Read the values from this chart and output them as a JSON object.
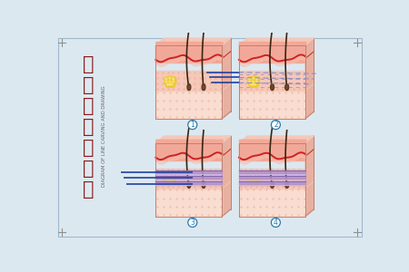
{
  "bg_color": "#dce8f0",
  "border_color": "#a0b8cc",
  "title_chinese": [
    "线",
    "雕",
    "提",
    "拉",
    "示",
    "意",
    "图"
  ],
  "title_english": "DIAGRAM OF LINE CARVING AND DRAWING",
  "title_color": "#8B1A1A",
  "title_english_color": "#666666",
  "label_color": "#2a7aaa",
  "skin_surface_color": "#f2a898",
  "skin_dermis_color": "#f5c8b8",
  "skin_deep_color": "#f8ddd0",
  "skin_red_line": "#cc2222",
  "skin_dotted_color": "#e8a8a0",
  "fat_yellow": "#f0c830",
  "hair_dark": "#3a2510",
  "hair_root": "#5a3820",
  "thread_purple": "#b090cc",
  "thread_dark": "#8060a0",
  "thread_light": "#d0b8e8",
  "needle_blue": "#2040a0",
  "needle_dashed": "#8890cc",
  "side_color": "#e8b0a0",
  "top_color": "#f5c8b8",
  "corner_color": "#909090",
  "stipple_color": "#e89888"
}
